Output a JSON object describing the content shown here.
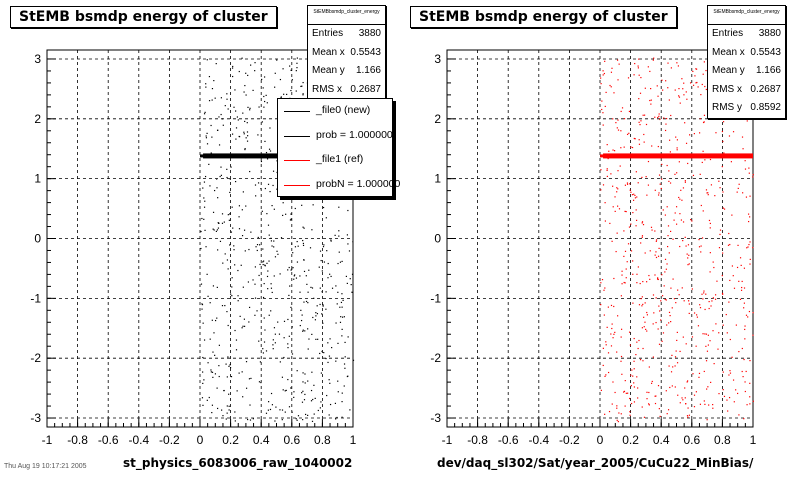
{
  "chart_data": [
    {
      "type": "scatter",
      "title": "StEMB bsmdp energy of cluster",
      "xlabel": "st_physics_6083006_raw_1040002",
      "xlim": [
        -1,
        1
      ],
      "ylim": [
        -3.15,
        3.15
      ],
      "xticks": [
        "-1",
        "-0.8",
        "-0.6",
        "-0.4",
        "-0.2",
        "0",
        "0.2",
        "0.4",
        "0.6",
        "0.8",
        "1"
      ],
      "yticks": [
        "3",
        "2",
        "1",
        "0",
        "-1",
        "-2",
        "-3"
      ],
      "grid": true,
      "marker_color": "#000000",
      "band_y": 1.38,
      "stats": {
        "name": "StEMBbsmdp_cluster_energy",
        "rows": [
          {
            "label": "Entries",
            "value": "3880"
          },
          {
            "label": "Mean x",
            "value": "0.5543"
          },
          {
            "label": "Mean y",
            "value": "1.166"
          },
          {
            "label": "RMS x",
            "value": "0.2687"
          }
        ]
      },
      "legend": [
        {
          "label": "_file0 (new)",
          "color": "#000000"
        },
        {
          "label": "prob = 1.000000",
          "color": "#000000"
        },
        {
          "label": "_file1 (ref)",
          "color": "#ff0000"
        },
        {
          "label": "probN = 1.000000",
          "color": "#ff0000"
        }
      ]
    },
    {
      "type": "scatter",
      "title": "StEMB bsmdp energy of cluster",
      "xlabel": "dev/daq_sl302/Sat/year_2005/CuCu22_MinBias/",
      "xlim": [
        -1,
        1
      ],
      "ylim": [
        -3.15,
        3.15
      ],
      "xticks": [
        "-1",
        "-0.8",
        "-0.6",
        "-0.4",
        "-0.2",
        "0",
        "0.2",
        "0.4",
        "0.6",
        "0.8",
        "1"
      ],
      "yticks": [
        "3",
        "2",
        "1",
        "0",
        "-1",
        "-2",
        "-3"
      ],
      "grid": true,
      "marker_color": "#ff0000",
      "band_y": 1.38,
      "stats": {
        "name": "StEMBbsmdp_cluster_energy",
        "rows": [
          {
            "label": "Entries",
            "value": "3880"
          },
          {
            "label": "Mean x",
            "value": "0.5543"
          },
          {
            "label": "Mean y",
            "value": "1.166"
          },
          {
            "label": "RMS x",
            "value": "0.2687"
          },
          {
            "label": "RMS y",
            "value": "0.8592"
          }
        ]
      }
    }
  ],
  "footer_text": "Thu Aug 19 10:17:21 2005"
}
